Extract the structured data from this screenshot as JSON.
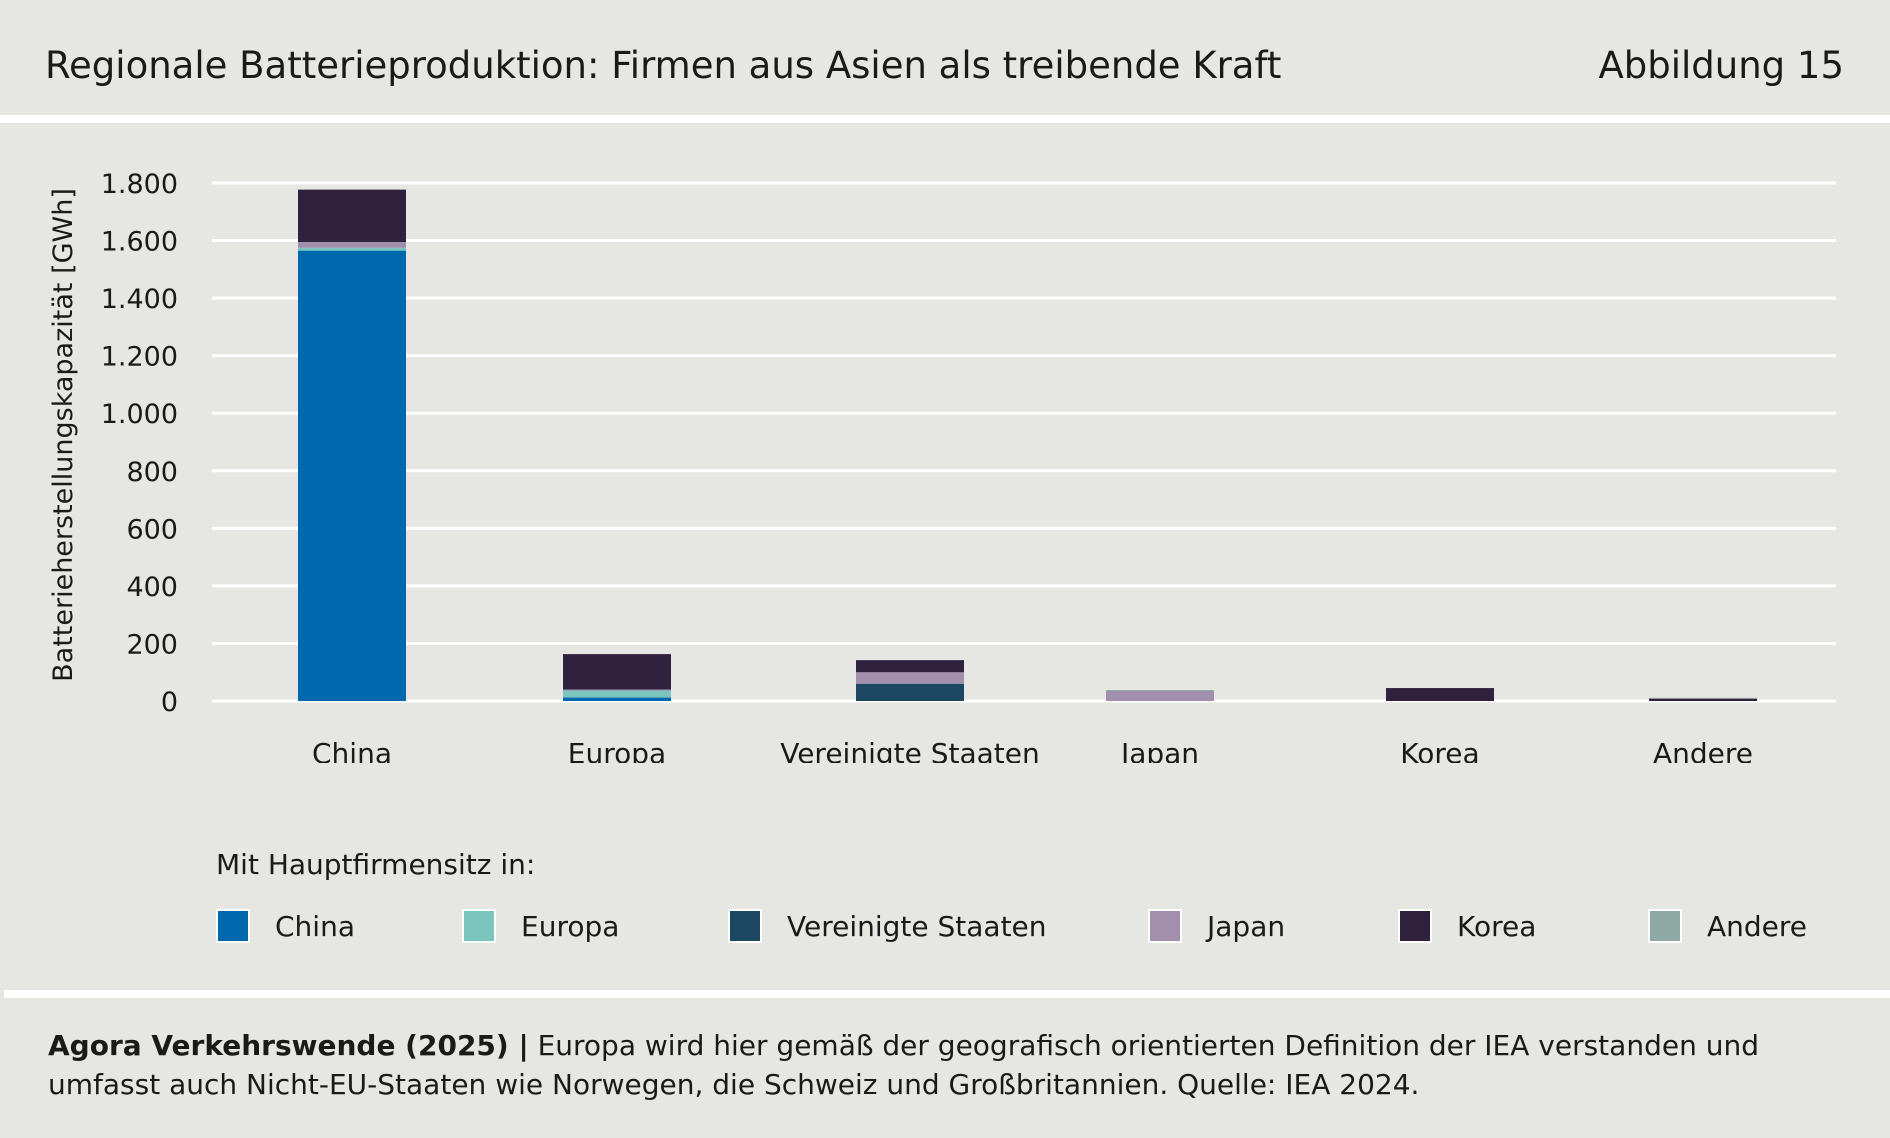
{
  "header": {
    "title": "Regionale Batterieproduktion: Firmen aus Asien als treibende Kraft",
    "figure_label": "Abbildung 15"
  },
  "legend": {
    "title": "Mit Hauptfirmensitz in:"
  },
  "footer": {
    "source": "Agora Verkehrswende (2025) |",
    "note": " Europa wird hier gemäß der geografisch orientierten Definition der IEA verstanden und umfasst auch Nicht-EU-Staaten wie Norwegen, die Schweiz und Großbritannien. Quelle: IEA 2024."
  },
  "chart_data": {
    "type": "bar",
    "stacked": true,
    "ylabel": "Batterieherstellungskapazität [GWh]",
    "xlabel": "",
    "ylim": [
      0,
      1800
    ],
    "yticks": [
      0,
      200,
      400,
      600,
      800,
      1000,
      1200,
      1400,
      1600,
      1800
    ],
    "ytick_labels": [
      "0",
      "200",
      "400",
      "600",
      "800",
      "1.000",
      "1.200",
      "1.400",
      "1.600",
      "1.800"
    ],
    "grid": true,
    "legend_position": "bottom",
    "categories": [
      "China",
      "Europa",
      "Vereinigte Staaten",
      "Japan",
      "Korea",
      "Andere"
    ],
    "series": [
      {
        "name": "China",
        "color": "#0068ac",
        "values": [
          1565,
          12,
          0,
          0,
          0,
          0
        ]
      },
      {
        "name": "Europa",
        "color": "#7cc4be",
        "values": [
          10,
          25,
          0,
          0,
          0,
          0
        ]
      },
      {
        "name": "Vereinigte Staaten",
        "color": "#1c4761",
        "values": [
          0,
          0,
          60,
          0,
          0,
          0
        ]
      },
      {
        "name": "Japan",
        "color": "#a28fad",
        "values": [
          20,
          3,
          40,
          35,
          0,
          0
        ]
      },
      {
        "name": "Korea",
        "color": "#30223f",
        "values": [
          182,
          123,
          42,
          0,
          45,
          8
        ]
      },
      {
        "name": "Andere",
        "color": "#8ea9a3",
        "values": [
          0,
          0,
          0,
          3,
          0,
          3
        ]
      }
    ]
  }
}
